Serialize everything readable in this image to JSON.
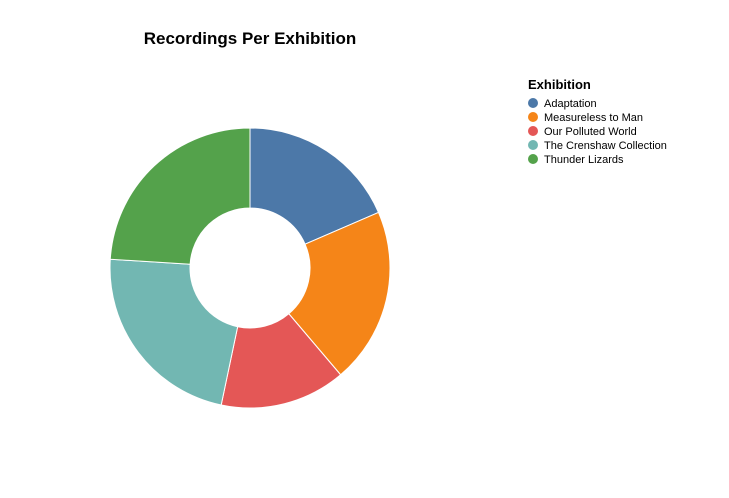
{
  "chart_data": {
    "type": "pie",
    "title": "Recordings Per Exhibition",
    "donut": true,
    "legend": {
      "title": "Exhibition",
      "position": "top-right"
    },
    "series": [
      {
        "name": "Adaptation",
        "value": 18.5,
        "color": "#4c78a8"
      },
      {
        "name": "Measureless to Man",
        "value": 20.3,
        "color": "#f58518"
      },
      {
        "name": "Our Polluted World",
        "value": 14.5,
        "color": "#e45756"
      },
      {
        "name": "The Crenshaw Collection",
        "value": 22.7,
        "color": "#72b7b2"
      },
      {
        "name": "Thunder Lizards",
        "value": 24.0,
        "color": "#54a24b"
      }
    ]
  }
}
